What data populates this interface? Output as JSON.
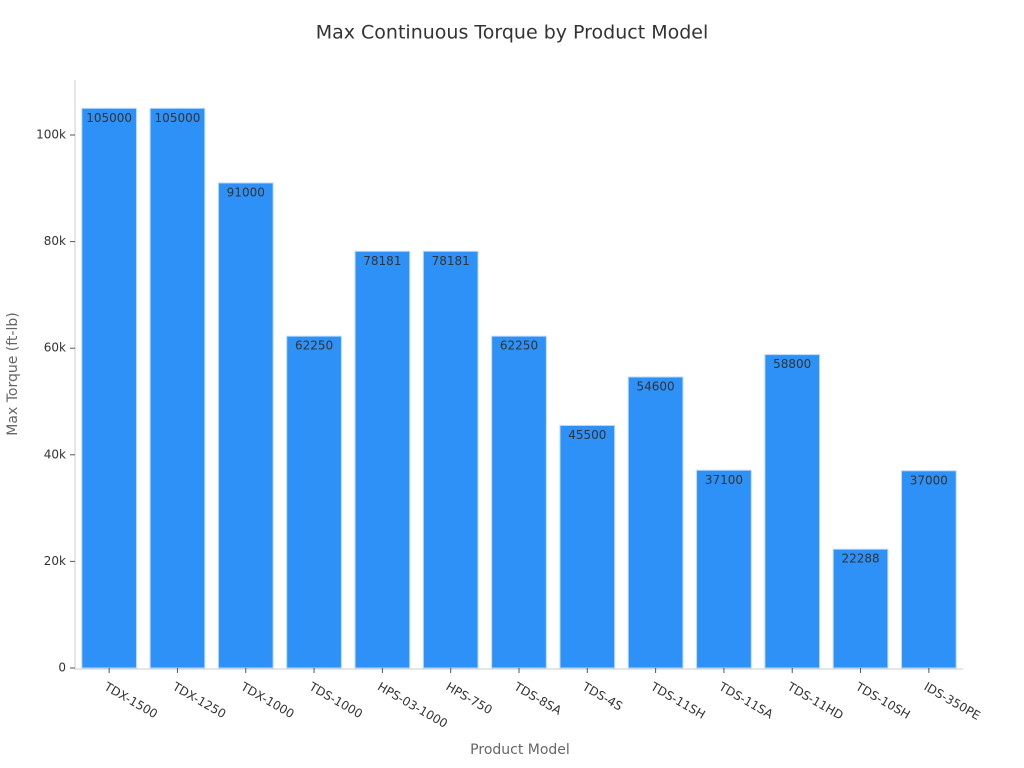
{
  "chart_data": {
    "type": "bar",
    "title": "Max Continuous Torque by Product Model",
    "x_label": "Product Model",
    "y_label": "Max Torque (ft-lb)",
    "categories": [
      "TDX-1500",
      "TDX-1250",
      "TDX-1000",
      "TDS-1000",
      "HPS-03-1000",
      "HPS-750",
      "TDS-8SA",
      "TDS-4S",
      "TDS-11SH",
      "TDS-11SA",
      "TDS-11HD",
      "TDS-10SH",
      "IDS-350PE"
    ],
    "values": [
      105000,
      105000,
      91000,
      62250,
      78181,
      78181,
      62250,
      45500,
      54600,
      37100,
      58800,
      22288,
      37000
    ],
    "color": "#2e91f7",
    "ylim": [
      0,
      110000
    ],
    "yticks": [
      0,
      {
        "value": 20000,
        "label": "20k"
      },
      {
        "value": 40000,
        "label": "40k"
      },
      {
        "value": 60000,
        "label": "60k"
      },
      {
        "value": 80000,
        "label": "80k"
      },
      {
        "value": 100000,
        "label": "100k"
      }
    ],
    "grid": false
  }
}
